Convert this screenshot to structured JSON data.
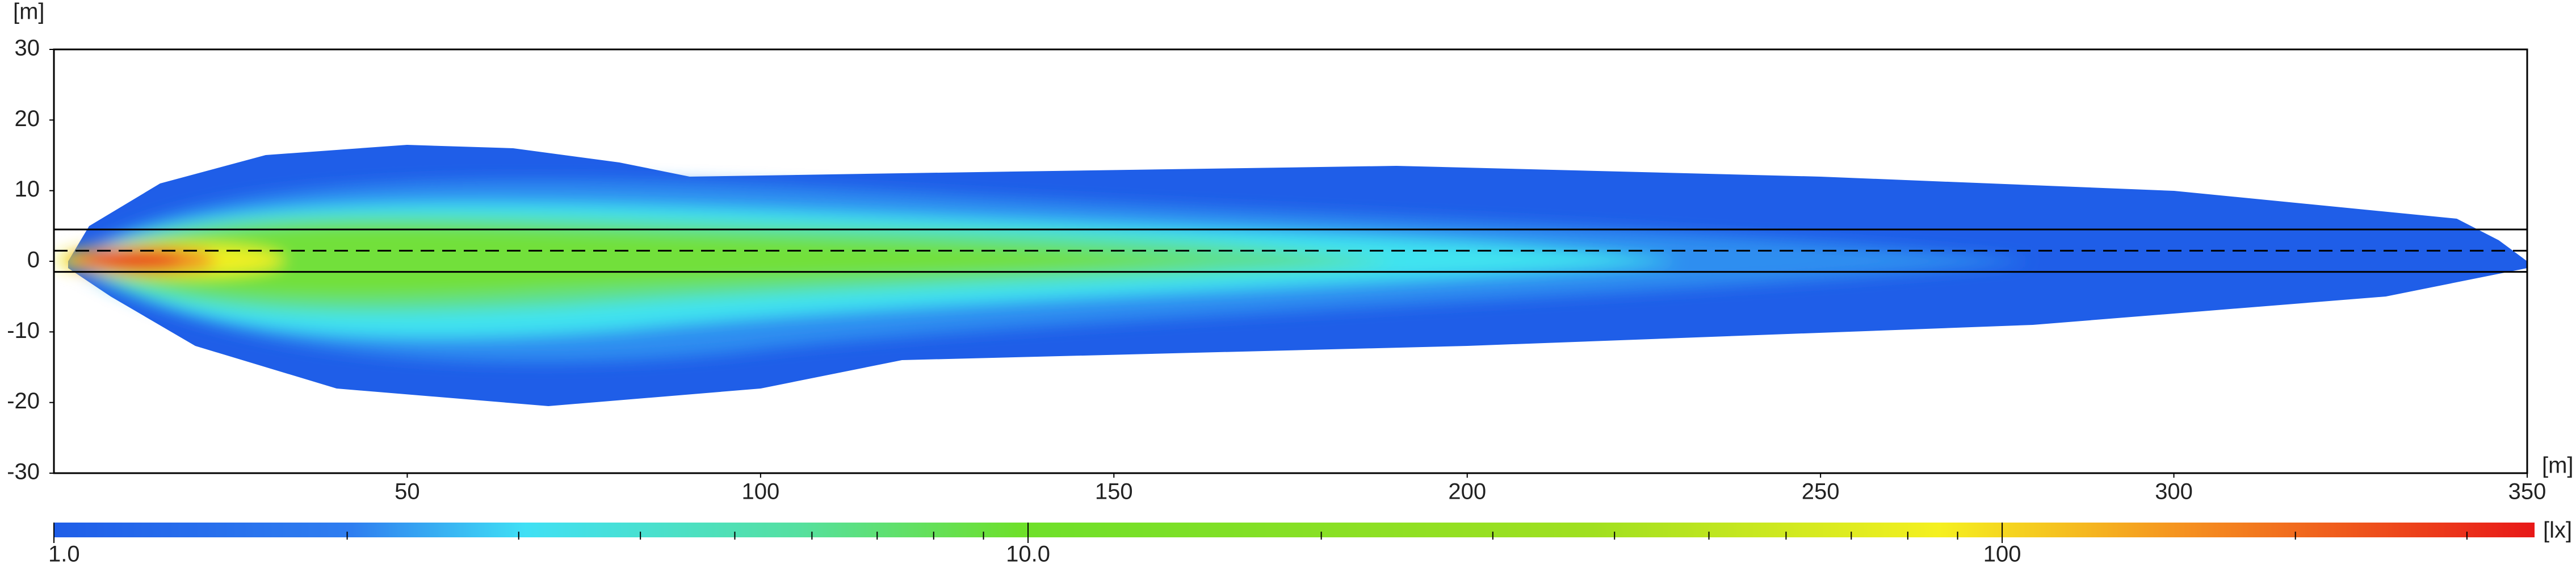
{
  "chart_data": {
    "type": "heatmap",
    "y_unit": "[m]",
    "x_unit": "[m]",
    "xlim": [
      0,
      350
    ],
    "xticks": [
      50,
      100,
      150,
      200,
      250,
      300,
      350
    ],
    "ylim": [
      -30,
      30
    ],
    "yticks": [
      -30,
      -20,
      -10,
      0,
      10,
      20,
      30
    ],
    "reference_lines": [
      {
        "y": 4.5,
        "style": "solid"
      },
      {
        "y": 1.5,
        "style": "dashed"
      },
      {
        "y": -1.5,
        "style": "solid"
      }
    ],
    "colorbar": {
      "unit": "[lx]",
      "scale": "log",
      "lim": [
        1,
        352
      ],
      "ticks": [
        {
          "value": 1,
          "label": "1.0"
        },
        {
          "value": 10,
          "label": "10.0"
        },
        100
      ],
      "minor_ticks": [
        2,
        3,
        4,
        5,
        6,
        7,
        8,
        9,
        20,
        30,
        40,
        50,
        60,
        70,
        80,
        90,
        200,
        300
      ]
    }
  }
}
